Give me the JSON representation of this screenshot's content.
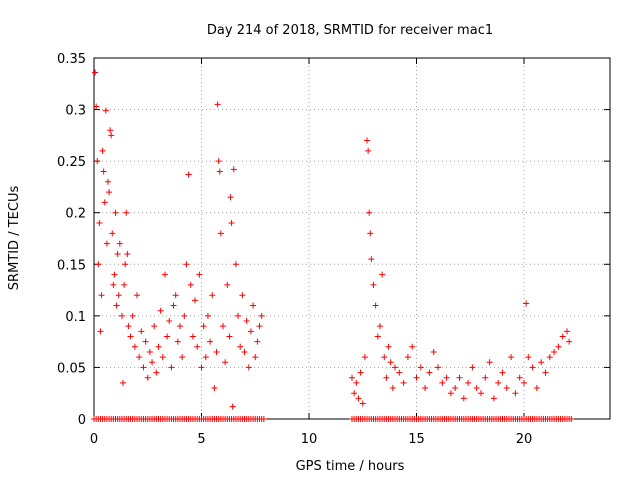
{
  "chart_data": {
    "type": "scatter",
    "title": "Day 214 of 2018, SRMTID for receiver mac1",
    "xlabel": "GPS time / hours",
    "ylabel": "SRMTID / TECUs",
    "xlim": [
      0,
      24
    ],
    "ylim": [
      0,
      0.35
    ],
    "xticks": [
      0,
      5,
      10,
      15,
      20
    ],
    "yticks": [
      0,
      0.05,
      0.1,
      0.15,
      0.2,
      0.25,
      0.3,
      0.35
    ],
    "xtick_labels": [
      "0",
      "5",
      "10",
      "15",
      "20"
    ],
    "ytick_labels": [
      "0",
      "0.05",
      "0.1",
      "0.15",
      "0.2",
      "0.25",
      "0.3",
      "0.35"
    ],
    "grid": true,
    "marker": "+",
    "color": "#ff0000",
    "series": [
      {
        "name": "SRMTID",
        "points": [
          [
            0.05,
            0.336
          ],
          [
            0.1,
            0.303
          ],
          [
            0.15,
            0.25
          ],
          [
            0.2,
            0.15
          ],
          [
            0.25,
            0.19
          ],
          [
            0.3,
            0.085
          ],
          [
            0.35,
            0.12
          ],
          [
            0.4,
            0.26
          ],
          [
            0.45,
            0.24
          ],
          [
            0.5,
            0.21
          ],
          [
            0.55,
            0.299
          ],
          [
            0.6,
            0.17
          ],
          [
            0.65,
            0.23
          ],
          [
            0.7,
            0.22
          ],
          [
            0.75,
            0.28
          ],
          [
            0.8,
            0.275
          ],
          [
            0.85,
            0.18
          ],
          [
            0.9,
            0.13
          ],
          [
            0.95,
            0.14
          ],
          [
            1.0,
            0.2
          ],
          [
            1.05,
            0.11
          ],
          [
            1.1,
            0.16
          ],
          [
            1.15,
            0.12
          ],
          [
            1.2,
            0.17
          ],
          [
            1.3,
            0.1
          ],
          [
            1.35,
            0.035
          ],
          [
            1.4,
            0.13
          ],
          [
            1.45,
            0.15
          ],
          [
            1.5,
            0.2
          ],
          [
            1.55,
            0.16
          ],
          [
            1.6,
            0.09
          ],
          [
            1.7,
            0.08
          ],
          [
            1.8,
            0.1
          ],
          [
            1.9,
            0.07
          ],
          [
            2.0,
            0.12
          ],
          [
            2.1,
            0.06
          ],
          [
            2.2,
            0.085
          ],
          [
            2.3,
            0.05
          ],
          [
            2.4,
            0.075
          ],
          [
            2.5,
            0.04
          ],
          [
            2.6,
            0.065
          ],
          [
            2.7,
            0.055
          ],
          [
            2.8,
            0.09
          ],
          [
            2.9,
            0.045
          ],
          [
            3.0,
            0.07
          ],
          [
            3.1,
            0.105
          ],
          [
            3.2,
            0.06
          ],
          [
            3.3,
            0.14
          ],
          [
            3.4,
            0.08
          ],
          [
            3.5,
            0.095
          ],
          [
            3.6,
            0.05
          ],
          [
            3.7,
            0.11
          ],
          [
            3.8,
            0.12
          ],
          [
            3.9,
            0.075
          ],
          [
            4.0,
            0.09
          ],
          [
            4.1,
            0.06
          ],
          [
            4.2,
            0.1
          ],
          [
            4.3,
            0.15
          ],
          [
            4.4,
            0.237
          ],
          [
            4.5,
            0.13
          ],
          [
            4.6,
            0.08
          ],
          [
            4.7,
            0.115
          ],
          [
            4.8,
            0.07
          ],
          [
            4.9,
            0.14
          ],
          [
            5.0,
            0.05
          ],
          [
            5.1,
            0.09
          ],
          [
            5.2,
            0.06
          ],
          [
            5.3,
            0.1
          ],
          [
            5.4,
            0.075
          ],
          [
            5.5,
            0.12
          ],
          [
            5.6,
            0.03
          ],
          [
            5.7,
            0.065
          ],
          [
            5.75,
            0.305
          ],
          [
            5.8,
            0.25
          ],
          [
            5.85,
            0.24
          ],
          [
            5.9,
            0.18
          ],
          [
            6.0,
            0.09
          ],
          [
            6.1,
            0.055
          ],
          [
            6.2,
            0.13
          ],
          [
            6.3,
            0.08
          ],
          [
            6.35,
            0.215
          ],
          [
            6.4,
            0.19
          ],
          [
            6.45,
            0.012
          ],
          [
            6.5,
            0.242
          ],
          [
            6.6,
            0.15
          ],
          [
            6.7,
            0.1
          ],
          [
            6.8,
            0.07
          ],
          [
            6.9,
            0.12
          ],
          [
            7.0,
            0.065
          ],
          [
            7.1,
            0.095
          ],
          [
            7.2,
            0.05
          ],
          [
            7.3,
            0.085
          ],
          [
            7.4,
            0.11
          ],
          [
            7.5,
            0.06
          ],
          [
            7.6,
            0.075
          ],
          [
            7.7,
            0.09
          ],
          [
            7.8,
            0.1
          ],
          [
            12.0,
            0.04
          ],
          [
            12.1,
            0.025
          ],
          [
            12.2,
            0.035
          ],
          [
            12.3,
            0.02
          ],
          [
            12.4,
            0.045
          ],
          [
            12.5,
            0.015
          ],
          [
            12.6,
            0.06
          ],
          [
            12.7,
            0.27
          ],
          [
            12.75,
            0.26
          ],
          [
            12.8,
            0.2
          ],
          [
            12.85,
            0.18
          ],
          [
            12.9,
            0.155
          ],
          [
            13.0,
            0.13
          ],
          [
            13.1,
            0.11
          ],
          [
            13.2,
            0.08
          ],
          [
            13.3,
            0.09
          ],
          [
            13.4,
            0.14
          ],
          [
            13.5,
            0.06
          ],
          [
            13.6,
            0.04
          ],
          [
            13.7,
            0.07
          ],
          [
            13.8,
            0.055
          ],
          [
            13.9,
            0.03
          ],
          [
            14.0,
            0.05
          ],
          [
            14.2,
            0.045
          ],
          [
            14.4,
            0.035
          ],
          [
            14.6,
            0.06
          ],
          [
            14.8,
            0.07
          ],
          [
            15.0,
            0.04
          ],
          [
            15.2,
            0.05
          ],
          [
            15.4,
            0.03
          ],
          [
            15.6,
            0.045
          ],
          [
            15.8,
            0.065
          ],
          [
            16.0,
            0.05
          ],
          [
            16.2,
            0.035
          ],
          [
            16.4,
            0.04
          ],
          [
            16.6,
            0.025
          ],
          [
            16.8,
            0.03
          ],
          [
            17.0,
            0.04
          ],
          [
            17.2,
            0.02
          ],
          [
            17.4,
            0.035
          ],
          [
            17.6,
            0.05
          ],
          [
            17.8,
            0.03
          ],
          [
            18.0,
            0.025
          ],
          [
            18.2,
            0.04
          ],
          [
            18.4,
            0.055
          ],
          [
            18.6,
            0.02
          ],
          [
            18.8,
            0.035
          ],
          [
            19.0,
            0.045
          ],
          [
            19.2,
            0.03
          ],
          [
            19.4,
            0.06
          ],
          [
            19.6,
            0.025
          ],
          [
            19.8,
            0.04
          ],
          [
            20.0,
            0.035
          ],
          [
            20.1,
            0.112
          ],
          [
            20.2,
            0.06
          ],
          [
            20.4,
            0.05
          ],
          [
            20.6,
            0.03
          ],
          [
            20.8,
            0.055
          ],
          [
            21.0,
            0.045
          ],
          [
            21.2,
            0.06
          ],
          [
            21.4,
            0.065
          ],
          [
            21.6,
            0.07
          ],
          [
            21.8,
            0.08
          ],
          [
            22.0,
            0.085
          ],
          [
            22.1,
            0.075
          ]
        ]
      }
    ],
    "zero_segments": [
      [
        0,
        7.9
      ],
      [
        12.0,
        22.2
      ]
    ]
  }
}
